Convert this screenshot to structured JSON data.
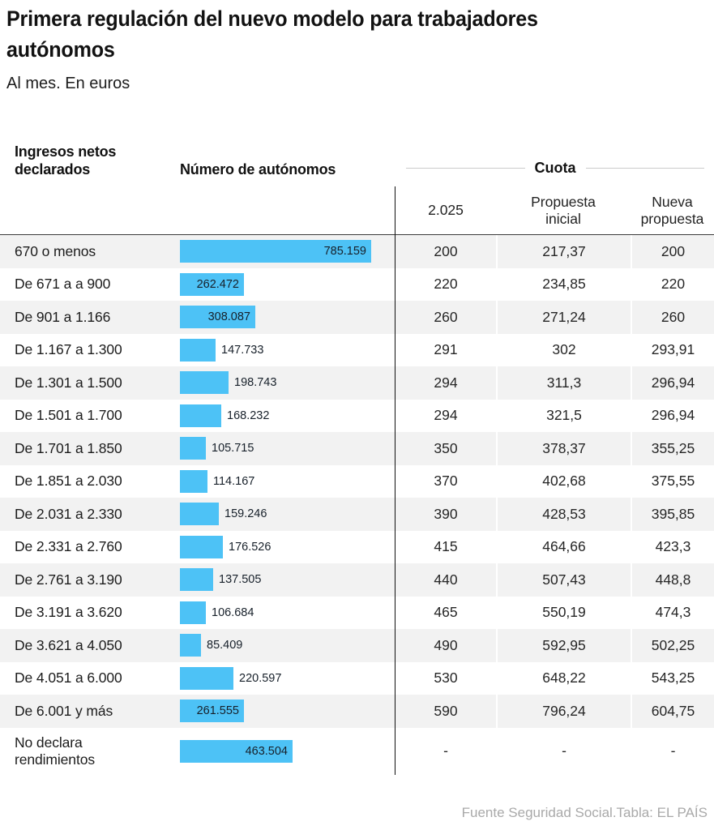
{
  "header": {
    "title": "Primera regulación del nuevo modelo para trabajadores\nautónomos",
    "subtitle": "Al mes. En euros"
  },
  "columns": {
    "income": "Ingresos netos\ndeclarados",
    "autonomos": "Número de autónomos",
    "cuota_group": "Cuota",
    "cuota_subcols": [
      "2.025",
      "Propuesta inicial",
      "Nueva propuesta"
    ]
  },
  "rows": [
    {
      "label": "670 o menos",
      "autonomos": "785.159",
      "value": 785159,
      "cuota_2025": "200",
      "cuota_inicial": "217,37",
      "cuota_nueva": "200"
    },
    {
      "label": "De 671 a a 900",
      "autonomos": "262.472",
      "value": 262472,
      "cuota_2025": "220",
      "cuota_inicial": "234,85",
      "cuota_nueva": "220"
    },
    {
      "label": "De 901 a 1.166",
      "autonomos": "308.087",
      "value": 308087,
      "cuota_2025": "260",
      "cuota_inicial": "271,24",
      "cuota_nueva": "260"
    },
    {
      "label": "De 1.167 a 1.300",
      "autonomos": "147.733",
      "value": 147733,
      "cuota_2025": "291",
      "cuota_inicial": "302",
      "cuota_nueva": "293,91"
    },
    {
      "label": "De 1.301 a 1.500",
      "autonomos": "198.743",
      "value": 198743,
      "cuota_2025": "294",
      "cuota_inicial": "311,3",
      "cuota_nueva": "296,94"
    },
    {
      "label": "De 1.501 a 1.700",
      "autonomos": "168.232",
      "value": 168232,
      "cuota_2025": "294",
      "cuota_inicial": "321,5",
      "cuota_nueva": "296,94"
    },
    {
      "label": "De 1.701 a 1.850",
      "autonomos": "105.715",
      "value": 105715,
      "cuota_2025": "350",
      "cuota_inicial": "378,37",
      "cuota_nueva": "355,25"
    },
    {
      "label": "De 1.851 a 2.030",
      "autonomos": "114.167",
      "value": 114167,
      "cuota_2025": "370",
      "cuota_inicial": "402,68",
      "cuota_nueva": "375,55"
    },
    {
      "label": "De 2.031 a 2.330",
      "autonomos": "159.246",
      "value": 159246,
      "cuota_2025": "390",
      "cuota_inicial": "428,53",
      "cuota_nueva": "395,85"
    },
    {
      "label": "De 2.331 a 2.760",
      "autonomos": "176.526",
      "value": 176526,
      "cuota_2025": "415",
      "cuota_inicial": "464,66",
      "cuota_nueva": "423,3"
    },
    {
      "label": "De 2.761 a 3.190",
      "autonomos": "137.505",
      "value": 137505,
      "cuota_2025": "440",
      "cuota_inicial": "507,43",
      "cuota_nueva": "448,8"
    },
    {
      "label": "De 3.191 a 3.620",
      "autonomos": "106.684",
      "value": 106684,
      "cuota_2025": "465",
      "cuota_inicial": "550,19",
      "cuota_nueva": "474,3"
    },
    {
      "label": "De 3.621 a 4.050",
      "autonomos": "85.409",
      "value": 85409,
      "cuota_2025": "490",
      "cuota_inicial": "592,95",
      "cuota_nueva": "502,25"
    },
    {
      "label": "De 4.051 a 6.000",
      "autonomos": "220.597",
      "value": 220597,
      "cuota_2025": "530",
      "cuota_inicial": "648,22",
      "cuota_nueva": "543,25"
    },
    {
      "label": "De 6.001 y más",
      "autonomos": "261.555",
      "value": 261555,
      "cuota_2025": "590",
      "cuota_inicial": "796,24",
      "cuota_nueva": "604,75"
    },
    {
      "label": "No declara rendimientos",
      "autonomos": "463.504",
      "value": 463504,
      "cuota_2025": "-",
      "cuota_inicial": "-",
      "cuota_nueva": "-"
    }
  ],
  "footer": {
    "credit": "Fuente Seguridad Social.Tabla: EL PAÍS"
  },
  "colors": {
    "bar": "#4DC2F6",
    "alt_row_background": "#F2F2F2",
    "separator_line": "#111111",
    "header_border": "#3A3A3A",
    "cuota_rule": "#CCCCCC",
    "footer_text": "#A9A9A9"
  },
  "chart_data": {
    "type": "bar",
    "title": "Primera regulación del nuevo modelo para trabajadores autónomos",
    "subtitle": "Al mes. En euros",
    "categories": [
      "670 o menos",
      "De 671 a a 900",
      "De 901 a 1.166",
      "De 1.167 a 1.300",
      "De 1.301 a 1.500",
      "De 1.501 a 1.700",
      "De 1.701 a 1.850",
      "De 1.851 a 2.030",
      "De 2.031 a 2.330",
      "De 2.331 a 2.760",
      "De 2.761 a 3.190",
      "De 3.191 a 3.620",
      "De 3.621 a 4.050",
      "De 4.051 a 6.000",
      "De 6.001 y más",
      "No declara rendimientos"
    ],
    "series": [
      {
        "name": "Número de autónomos",
        "values": [
          785159,
          262472,
          308087,
          147733,
          198743,
          168232,
          105715,
          114167,
          159246,
          176526,
          137505,
          106684,
          85409,
          220597,
          261555,
          463504
        ]
      },
      {
        "name": "Cuota 2.025",
        "values": [
          200,
          220,
          260,
          291,
          294,
          294,
          350,
          370,
          390,
          415,
          440,
          465,
          490,
          530,
          590,
          null
        ]
      },
      {
        "name": "Cuota propuesta inicial",
        "values": [
          217.37,
          234.85,
          271.24,
          302,
          311.3,
          321.5,
          378.37,
          402.68,
          428.53,
          464.66,
          507.43,
          550.19,
          592.95,
          648.22,
          796.24,
          null
        ]
      },
      {
        "name": "Cuota nueva propuesta",
        "values": [
          200,
          220,
          260,
          293.91,
          296.94,
          296.94,
          355.25,
          375.55,
          395.85,
          423.3,
          448.8,
          474.3,
          502.25,
          543.25,
          604.75,
          null
        ]
      }
    ],
    "xlabel": "Ingresos netos declarados",
    "ylabel": "Número de autónomos",
    "legend_position": "none",
    "grid": false,
    "source": "Fuente Seguridad Social.Tabla: EL PAÍS"
  }
}
